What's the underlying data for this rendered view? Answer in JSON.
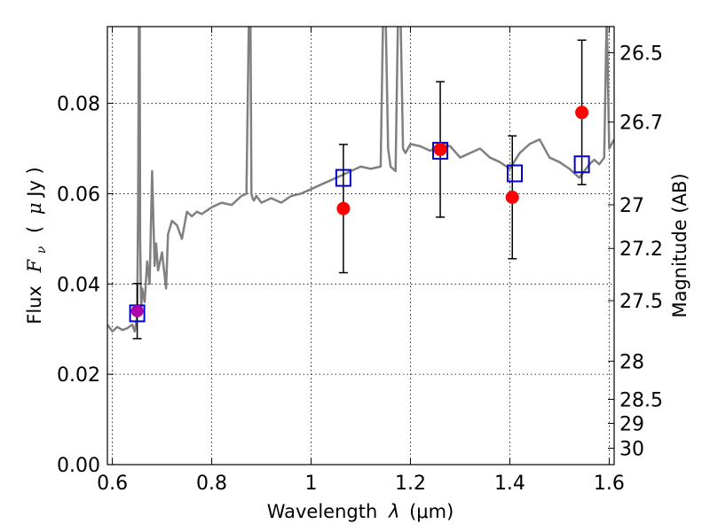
{
  "chart_data": {
    "type": "scatter",
    "xlabel_main": "Wavelength",
    "xlabel_symbol": "λ",
    "xlabel_unit": "(μm)",
    "ylabel_main": "Flux",
    "ylabel_symbol_base": "F",
    "ylabel_symbol_sub": "ν",
    "ylabel_unit_open": "(",
    "ylabel_unit_mu": "μ",
    "ylabel_unit_rest": "Jy )",
    "y2label": "Magnitude (AB)",
    "xlim": [
      0.59,
      1.61
    ],
    "ylim": [
      0.0,
      0.097
    ],
    "grid": true,
    "x_ticks": [
      {
        "value": 0.6,
        "label": "0.6"
      },
      {
        "value": 0.8,
        "label": "0.8"
      },
      {
        "value": 1.0,
        "label": "1"
      },
      {
        "value": 1.2,
        "label": "1.2"
      },
      {
        "value": 1.4,
        "label": "1.4"
      },
      {
        "value": 1.6,
        "label": "1.6"
      }
    ],
    "y_ticks": [
      {
        "value": 0.0,
        "label": "0.00"
      },
      {
        "value": 0.02,
        "label": "0.02"
      },
      {
        "value": 0.04,
        "label": "0.04"
      },
      {
        "value": 0.06,
        "label": "0.06"
      },
      {
        "value": 0.08,
        "label": "0.08"
      }
    ],
    "y2_ticks": [
      {
        "mag": 26.5,
        "label": "26.5"
      },
      {
        "mag": 26.7,
        "label": "26.7"
      },
      {
        "mag": 27.0,
        "label": "27"
      },
      {
        "mag": 27.2,
        "label": "27.2"
      },
      {
        "mag": 27.5,
        "label": "27.5"
      },
      {
        "mag": 28.0,
        "label": "28"
      },
      {
        "mag": 28.5,
        "label": "28.5"
      },
      {
        "mag": 29.0,
        "label": "29"
      },
      {
        "mag": 30.0,
        "label": "30"
      }
    ],
    "spectrum": {
      "color": "#808080",
      "x": [
        0.59,
        0.6,
        0.61,
        0.62,
        0.63,
        0.64,
        0.645,
        0.65,
        0.652,
        0.6535,
        0.655,
        0.656,
        0.658,
        0.66,
        0.665,
        0.67,
        0.675,
        0.68,
        0.685,
        0.688,
        0.692,
        0.7,
        0.708,
        0.712,
        0.72,
        0.73,
        0.74,
        0.75,
        0.76,
        0.77,
        0.78,
        0.8,
        0.82,
        0.84,
        0.86,
        0.87,
        0.875,
        0.878,
        0.88,
        0.882,
        0.885,
        0.89,
        0.9,
        0.92,
        0.94,
        0.96,
        0.98,
        1.0,
        1.02,
        1.04,
        1.06,
        1.08,
        1.1,
        1.12,
        1.14,
        1.145,
        1.15,
        1.155,
        1.16,
        1.17,
        1.175,
        1.18,
        1.185,
        1.19,
        1.2,
        1.22,
        1.24,
        1.26,
        1.28,
        1.3,
        1.32,
        1.34,
        1.36,
        1.38,
        1.4,
        1.42,
        1.44,
        1.46,
        1.48,
        1.5,
        1.52,
        1.54,
        1.56,
        1.57,
        1.58,
        1.59,
        1.595,
        1.6,
        1.61
      ],
      "y": [
        0.031,
        0.0295,
        0.0305,
        0.0298,
        0.0302,
        0.031,
        0.0295,
        0.033,
        0.06,
        0.1,
        0.1,
        0.05,
        0.034,
        0.039,
        0.036,
        0.045,
        0.04,
        0.065,
        0.044,
        0.049,
        0.043,
        0.047,
        0.039,
        0.051,
        0.054,
        0.053,
        0.05,
        0.056,
        0.055,
        0.056,
        0.0555,
        0.057,
        0.058,
        0.0575,
        0.0595,
        0.06,
        0.1,
        0.1,
        0.06,
        0.059,
        0.0585,
        0.0595,
        0.058,
        0.059,
        0.058,
        0.0595,
        0.06,
        0.061,
        0.062,
        0.063,
        0.064,
        0.065,
        0.066,
        0.0655,
        0.066,
        0.1,
        0.1,
        0.07,
        0.066,
        0.065,
        0.1,
        0.1,
        0.07,
        0.069,
        0.071,
        0.0705,
        0.0695,
        0.071,
        0.0705,
        0.068,
        0.069,
        0.07,
        0.068,
        0.067,
        0.0655,
        0.069,
        0.071,
        0.072,
        0.068,
        0.067,
        0.0655,
        0.0635,
        0.0665,
        0.0675,
        0.0665,
        0.068,
        0.1,
        0.07,
        0.072
      ]
    },
    "model_points": {
      "name": "",
      "color": "#0000cc",
      "x": [
        0.65,
        1.065,
        1.26,
        1.41,
        1.545
      ],
      "y": [
        0.0335,
        0.0635,
        0.0695,
        0.0645,
        0.0665
      ]
    },
    "observed_points": {
      "name": "",
      "color": "#ff0000",
      "x": [
        1.065,
        1.26,
        1.405,
        1.545
      ],
      "y": [
        0.0567,
        0.0698,
        0.0592,
        0.078
      ],
      "yerr": [
        0.0142,
        0.015,
        0.0136,
        0.016
      ]
    },
    "limit_point": {
      "color": "#aa00aa",
      "x": 0.65,
      "y": 0.034,
      "yerr_low": 0.0061,
      "yerr_high": 0.0061
    }
  }
}
